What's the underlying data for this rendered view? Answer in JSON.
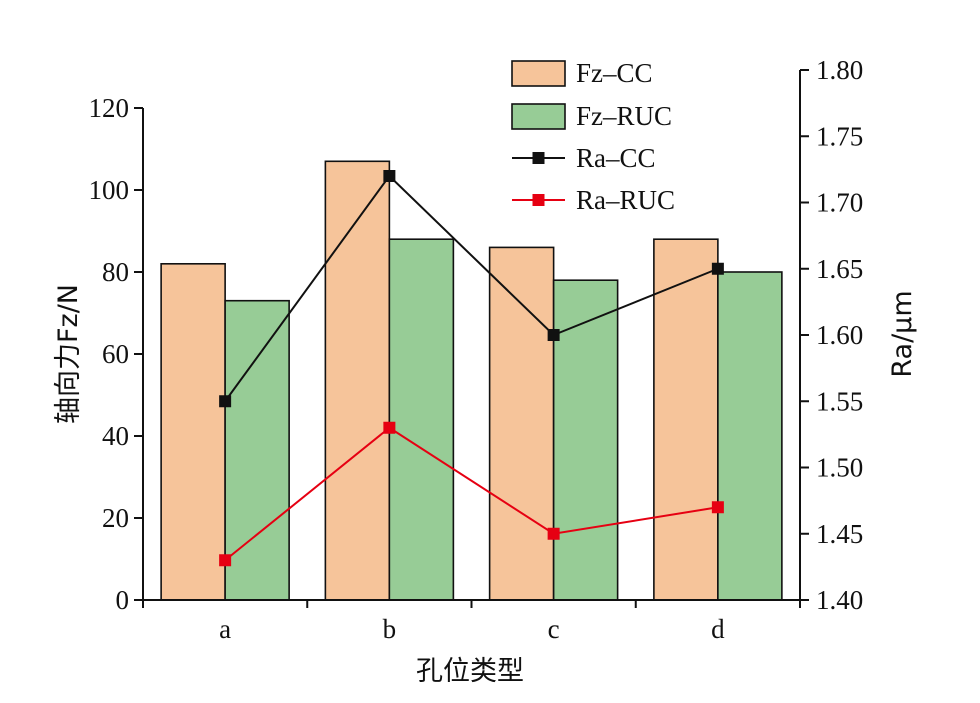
{
  "chart_data": {
    "type": "bar",
    "categories": [
      "a",
      "b",
      "c",
      "d"
    ],
    "xlabel": "孔位类型",
    "ylabel": "轴向力Fz/N",
    "ylabel_right": "Ra/μm",
    "ylim": [
      0,
      120
    ],
    "ylim_right": [
      1.4,
      1.8
    ],
    "yticks": [
      0,
      20,
      40,
      60,
      80,
      100,
      120
    ],
    "yticks_right": [
      "1.40",
      "1.45",
      "1.50",
      "1.55",
      "1.60",
      "1.65",
      "1.70",
      "1.75",
      "1.80"
    ],
    "grid": false,
    "legend_position": "top-right",
    "bar_series": [
      {
        "name": "Fz–CC",
        "values": [
          82,
          107,
          86,
          88
        ],
        "color": "#f6c49a"
      },
      {
        "name": "Fz–RUC",
        "values": [
          73,
          88,
          78,
          80
        ],
        "color": "#97cc96"
      }
    ],
    "line_series": [
      {
        "name": "Ra–CC",
        "axis": "right",
        "values": [
          1.55,
          1.72,
          1.6,
          1.65
        ],
        "color": "#111111",
        "marker": "square"
      },
      {
        "name": "Ra–RUC",
        "axis": "right",
        "values": [
          1.43,
          1.53,
          1.45,
          1.47
        ],
        "color": "#e60012",
        "marker": "square"
      }
    ]
  }
}
